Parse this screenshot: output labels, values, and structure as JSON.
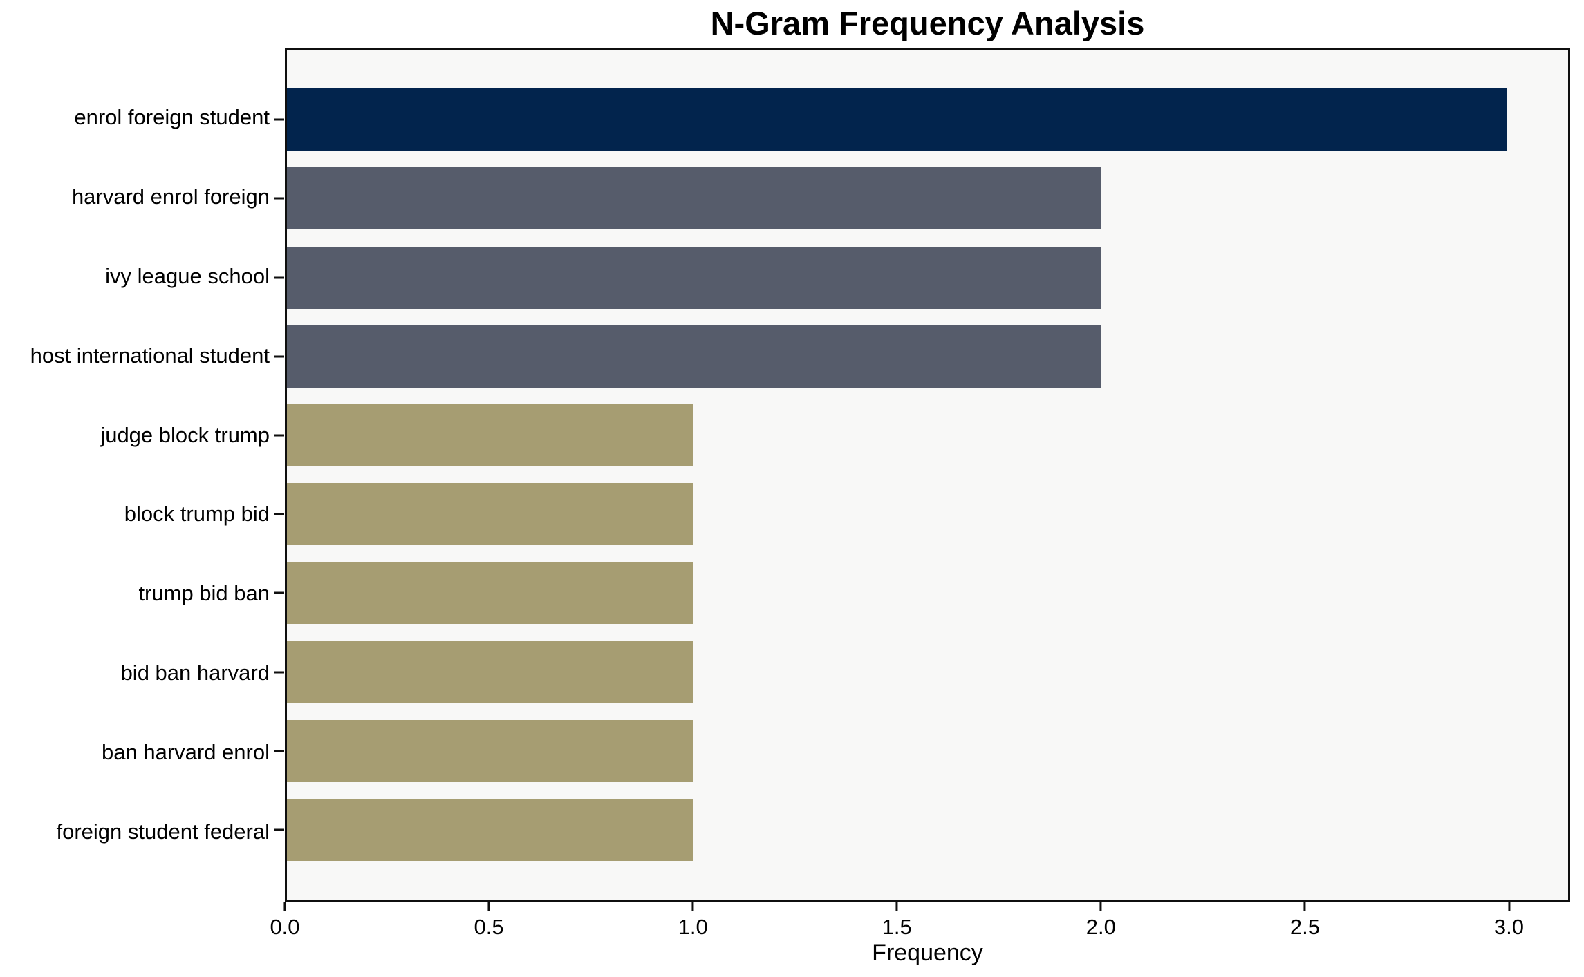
{
  "chart_data": {
    "type": "bar",
    "orientation": "horizontal",
    "title": "N-Gram Frequency Analysis",
    "xlabel": "Frequency",
    "ylabel": "",
    "categories": [
      "enrol foreign student",
      "harvard enrol foreign",
      "ivy league school",
      "host international student",
      "judge block trump",
      "block trump bid",
      "trump bid ban",
      "bid ban harvard",
      "ban harvard enrol",
      "foreign student federal"
    ],
    "values": [
      3,
      2,
      2,
      2,
      1,
      1,
      1,
      1,
      1,
      1
    ],
    "bar_colors": [
      "#02244d",
      "#565c6b",
      "#565c6b",
      "#565c6b",
      "#a69d72",
      "#a69d72",
      "#a69d72",
      "#a69d72",
      "#a69d72",
      "#a69d72"
    ],
    "xlim": [
      0,
      3.15
    ],
    "xticks": [
      0.0,
      0.5,
      1.0,
      1.5,
      2.0,
      2.5,
      3.0
    ],
    "xtick_labels": [
      "0.0",
      "0.5",
      "1.0",
      "1.5",
      "2.0",
      "2.5",
      "3.0"
    ],
    "grid": false,
    "legend": null,
    "colors": {
      "plot_background": "#f8f8f7",
      "figure_background": "#ffffff",
      "axis_frame": "#0f0f0f",
      "highest_bar": "#02244d",
      "mid_bars": "#565c6b",
      "low_bars": "#a69d72"
    }
  }
}
